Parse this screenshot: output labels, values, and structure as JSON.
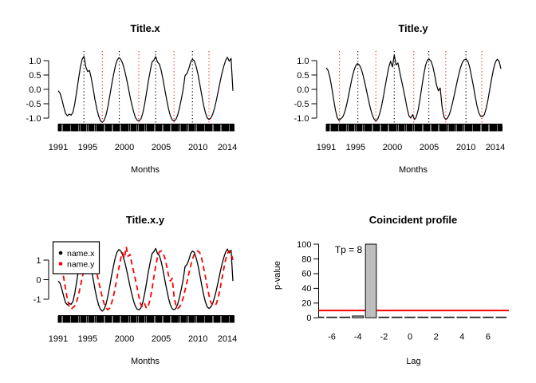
{
  "figure": {
    "background": "#ffffff",
    "colors": {
      "line": "#000000",
      "accent_red": "#ff0000",
      "trough_line_red": "#ff2020",
      "bar_fill": "#bebebe",
      "bar_edge": "#1a1a1a"
    }
  },
  "chart_data": [
    {
      "id": "title_x",
      "type": "line",
      "title": "Title.x",
      "xlabel": "Months",
      "ylabel": "",
      "x_ticks": [
        1991,
        1995,
        2000,
        2005,
        2010,
        2014
      ],
      "y_ticks": [
        1.0,
        0.5,
        0.0,
        -0.5,
        -1.0
      ],
      "y_tick_labels": [
        "1.0",
        "0.5",
        "0.0",
        "-0.5",
        "-1.0"
      ],
      "xlim": [
        1991,
        2014.92
      ],
      "ylim": [
        -1.25,
        1.25
      ],
      "grid": false,
      "rug": "monthly",
      "x_start": 1991.0,
      "x_step": 0.25,
      "values": [
        -0.05,
        -0.13,
        -0.35,
        -0.61,
        -0.84,
        -0.92,
        -0.86,
        -0.9,
        -0.8,
        -0.51,
        -0.1,
        0.35,
        0.76,
        1.05,
        1.15,
        0.78,
        0.62,
        0.66,
        0.38,
        0.02,
        -0.36,
        -0.68,
        -0.93,
        -1.09,
        -1.15,
        -1.08,
        -0.9,
        -0.61,
        -0.25,
        0.13,
        0.49,
        0.8,
        1.01,
        1.1,
        1.05,
        0.91,
        0.69,
        0.41,
        0.1,
        -0.23,
        -0.52,
        -0.78,
        -0.98,
        -1.08,
        -1.1,
        -1.03,
        -0.83,
        -0.52,
        -0.14,
        0.27,
        0.63,
        0.95,
        1.02,
        1.14,
        0.95,
        0.88,
        0.66,
        0.34,
        -0.02,
        -0.36,
        -0.68,
        -0.92,
        -1.06,
        -1.1,
        -1.05,
        -0.89,
        -0.64,
        -0.33,
        0.01,
        0.48,
        0.55,
        0.72,
        0.95,
        1.05,
        0.99,
        0.8,
        0.53,
        0.18,
        -0.18,
        -0.53,
        -0.8,
        -0.99,
        -1.05,
        -1.0,
        -0.87,
        -0.66,
        -0.39,
        -0.08,
        0.24,
        0.54,
        0.8,
        1.0,
        1.12,
        0.98,
        1.08,
        -0.05
      ],
      "peak_lines": [
        1994.5,
        1999.3,
        2004.25,
        2009.25
      ],
      "trough_lines": [
        1997.0,
        2001.95,
        2006.75,
        2011.5
      ]
    },
    {
      "id": "title_y",
      "type": "line",
      "title": "Title.y",
      "xlabel": "Months",
      "ylabel": "",
      "x_ticks": [
        1991,
        1995,
        2000,
        2005,
        2010,
        2014
      ],
      "y_ticks": [
        1.0,
        0.5,
        0.0,
        -0.5,
        -1.0
      ],
      "y_tick_labels": [
        "1.0",
        "0.5",
        "0.0",
        "-0.5",
        "-1.0"
      ],
      "xlim": [
        1991,
        2014.92
      ],
      "ylim": [
        -1.25,
        1.25
      ],
      "grid": false,
      "rug": "monthly",
      "x_start": 1991.0,
      "x_step": 0.25,
      "values": [
        0.75,
        0.66,
        0.42,
        0.07,
        -0.34,
        -0.71,
        -0.98,
        -1.08,
        -1.02,
        -0.96,
        -0.81,
        -0.56,
        -0.26,
        0.07,
        0.38,
        0.64,
        0.82,
        0.9,
        0.85,
        0.72,
        0.5,
        0.23,
        -0.07,
        -0.37,
        -0.65,
        -0.88,
        -1.03,
        -1.1,
        -1.04,
        -0.87,
        -0.61,
        -0.28,
        0.09,
        0.44,
        0.77,
        0.98,
        0.78,
        1.2,
        0.85,
        0.92,
        0.6,
        0.3,
        0.0,
        -0.32,
        -0.66,
        -0.92,
        -1.0,
        -0.88,
        -1.05,
        -0.96,
        -0.71,
        -0.34,
        0.09,
        0.5,
        0.83,
        1.02,
        1.05,
        0.98,
        0.79,
        0.5,
        0.15,
        -0.05,
        0.05,
        -0.6,
        -0.95,
        -1.05,
        -1.0,
        -0.87,
        -0.66,
        -0.39,
        -0.09,
        0.22,
        0.5,
        0.75,
        0.93,
        1.03,
        1.05,
        0.98,
        0.78,
        0.46,
        0.13,
        -0.24,
        -0.57,
        -0.82,
        -0.94,
        -0.95,
        -0.88,
        -0.67,
        -0.36,
        0.01,
        0.39,
        0.72,
        0.95,
        1.05,
        0.98,
        0.72
      ],
      "peak_lines": [
        1995.3,
        2000.25,
        2004.95,
        2010.0
      ],
      "trough_lines": [
        1992.8,
        1997.75,
        2002.9,
        2007.25,
        2012.15
      ]
    },
    {
      "id": "title_xy",
      "type": "line",
      "title": "Title.x.y",
      "xlabel": "Months",
      "ylabel": "",
      "x_ticks": [
        1991,
        1995,
        2000,
        2005,
        2010,
        2014
      ],
      "y_ticks": [
        1,
        0,
        -1
      ],
      "y_tick_labels": [
        "1",
        "0",
        "-1"
      ],
      "xlim": [
        1991,
        2014.92
      ],
      "ylim": [
        -1.75,
        1.75
      ],
      "grid": false,
      "rug": "monthly",
      "scale": 1.4,
      "series": [
        {
          "name": "name.x",
          "ref": "title_x",
          "color": "#000000",
          "style": "solid"
        },
        {
          "name": "name.y",
          "ref": "title_y",
          "color": "#ff0000",
          "style": "dashed"
        }
      ],
      "legend": {
        "position": "topleft",
        "items": [
          {
            "label": "name.x",
            "color": "#000000"
          },
          {
            "label": "name.y",
            "color": "#ff0000"
          }
        ]
      }
    },
    {
      "id": "coincident_profile",
      "type": "bar",
      "title": "Coincident profile",
      "xlabel": "Lag",
      "ylabel": "p-value",
      "x_ticks": [
        -6,
        -4,
        -2,
        0,
        2,
        4,
        6
      ],
      "y_ticks": [
        0,
        20,
        40,
        60,
        80,
        100
      ],
      "ylim": [
        0,
        100
      ],
      "lags": [
        -7,
        -6,
        -5,
        -4,
        -3,
        -2,
        -1,
        0,
        1,
        2,
        3,
        4,
        5,
        6,
        7
      ],
      "values": [
        0,
        0,
        0,
        2.5,
        100,
        0,
        0,
        0,
        0,
        0,
        0,
        0,
        0,
        0,
        0
      ],
      "highlight_lag": -3,
      "sig_level": 10,
      "annotation": "Tp = 8"
    }
  ]
}
